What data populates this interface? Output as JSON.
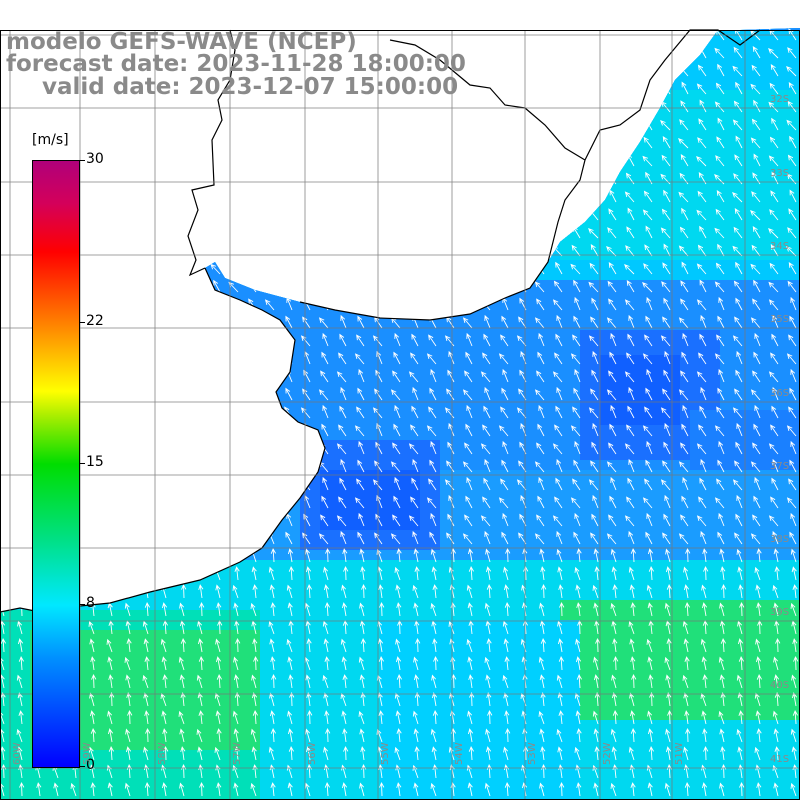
{
  "header": {
    "line1": "modelo GEFS-WAVE (NCEP)",
    "line2": "forecast date: 2023-11-28 18:00:00",
    "line3": "valid date: 2023-12-07 15:00:00"
  },
  "colorbar": {
    "unit": "[m/s]",
    "ticks": [
      "30",
      "22",
      "15",
      "8",
      "0"
    ],
    "tick_values": [
      30,
      22,
      15,
      8,
      0
    ],
    "min": 0,
    "max": 30
  },
  "map": {
    "lat_labels": [
      "32S",
      "33S",
      "34S",
      "35S",
      "36S",
      "37S",
      "38S",
      "39S",
      "40S",
      "41S"
    ],
    "lon_labels": [
      "60W",
      "59W",
      "58W",
      "57W",
      "56W",
      "55W",
      "54W",
      "53W",
      "52W",
      "51W"
    ],
    "field": "wind speed and direction",
    "colors": {
      "land": "#ffffff",
      "coast": "#000000",
      "grid": "#777777",
      "arrow": "#ffffff"
    }
  }
}
